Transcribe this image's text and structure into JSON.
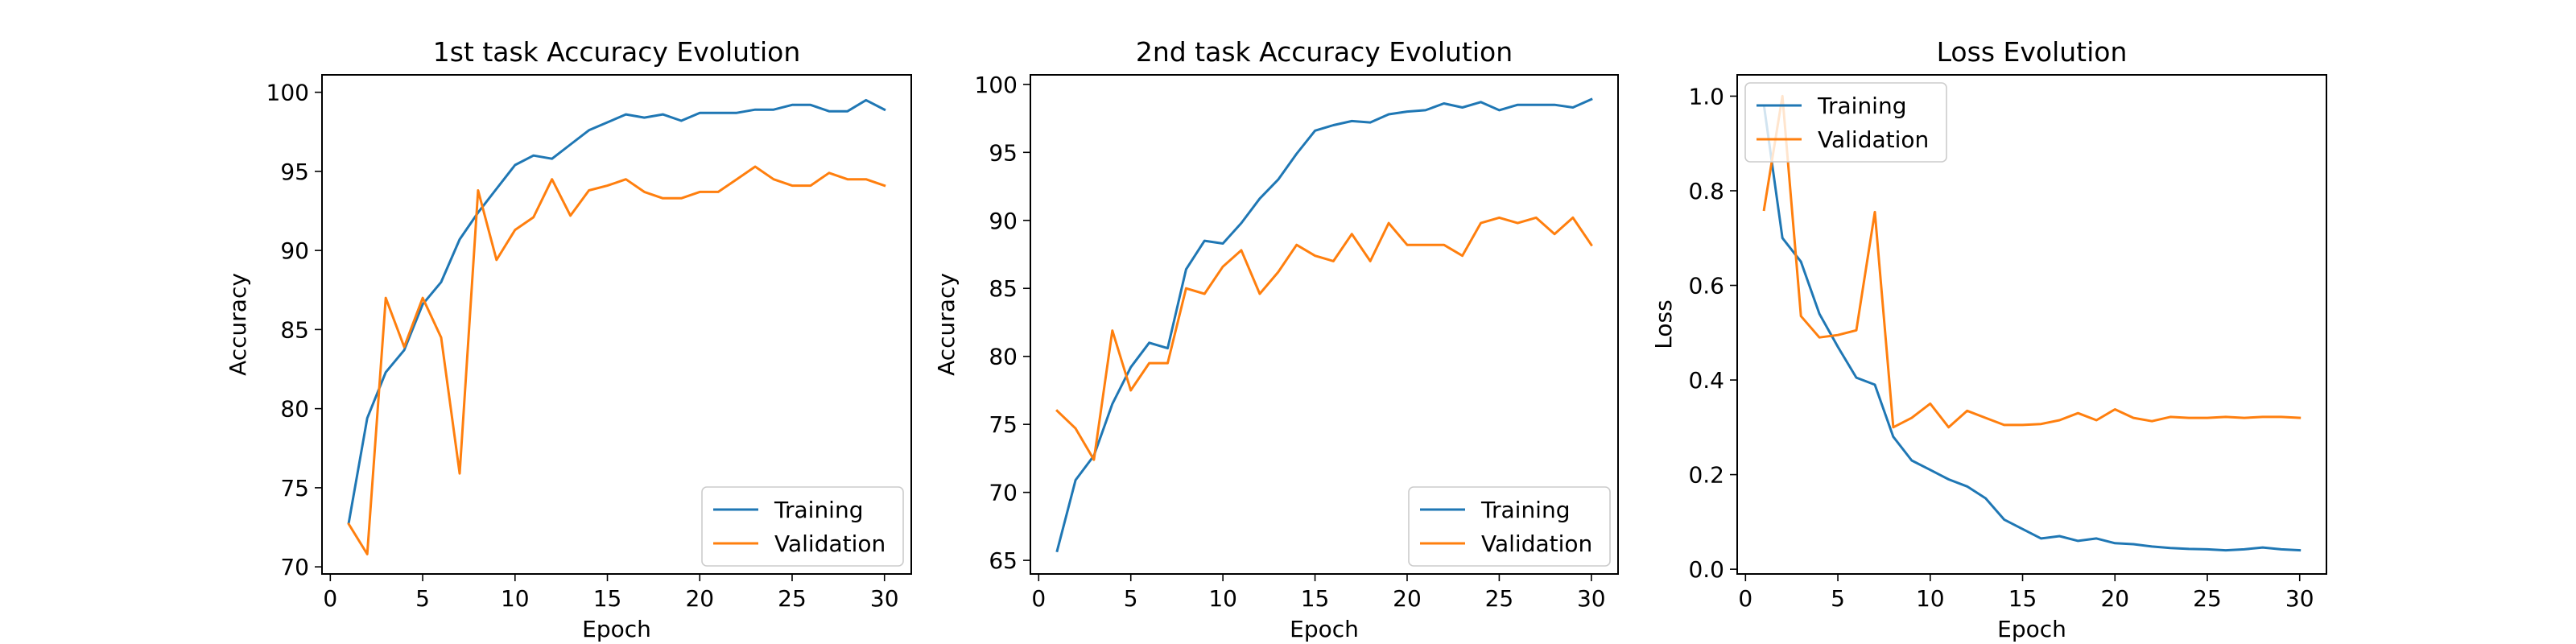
{
  "colors": {
    "training": "#1f77b4",
    "validation": "#ff7f0e"
  },
  "chart_data": [
    {
      "type": "line",
      "title": "1st task Accuracy Evolution",
      "xlabel": "Epoch",
      "ylabel": "Accuracy",
      "xlim": [
        -0.45,
        31.45
      ],
      "ylim": [
        69.55,
        101.1
      ],
      "xticks": [
        0,
        5,
        10,
        15,
        20,
        25,
        30
      ],
      "yticks": [
        70,
        75,
        80,
        85,
        90,
        95,
        100
      ],
      "legend": "lower right",
      "grid": false,
      "x": [
        1,
        2,
        3,
        4,
        5,
        6,
        7,
        8,
        9,
        10,
        11,
        12,
        13,
        14,
        15,
        16,
        17,
        18,
        19,
        20,
        21,
        22,
        23,
        24,
        25,
        26,
        27,
        28,
        29,
        30
      ],
      "series": [
        {
          "name": "Training",
          "values": [
            72.8,
            79.4,
            82.3,
            83.7,
            86.6,
            88.0,
            90.7,
            92.4,
            93.9,
            95.4,
            96.0,
            95.8,
            96.7,
            97.6,
            98.1,
            98.6,
            98.4,
            98.6,
            98.2,
            98.7,
            98.7,
            98.7,
            98.9,
            98.9,
            99.2,
            99.2,
            98.8,
            98.8,
            99.5,
            98.9
          ]
        },
        {
          "name": "Validation",
          "values": [
            72.7,
            70.8,
            87.0,
            83.9,
            87.0,
            84.5,
            75.9,
            93.8,
            89.4,
            91.3,
            92.1,
            94.5,
            92.2,
            93.8,
            94.1,
            94.5,
            93.7,
            93.3,
            93.3,
            93.7,
            93.7,
            94.5,
            95.3,
            94.5,
            94.1,
            94.1,
            94.9,
            94.5,
            94.5,
            94.1
          ]
        }
      ]
    },
    {
      "type": "line",
      "title": "2nd task Accuracy Evolution",
      "xlabel": "Epoch",
      "ylabel": "Accuracy",
      "xlim": [
        -0.45,
        31.45
      ],
      "ylim": [
        64.0,
        100.7
      ],
      "xticks": [
        0,
        5,
        10,
        15,
        20,
        25,
        30
      ],
      "yticks": [
        65,
        70,
        75,
        80,
        85,
        90,
        95,
        100
      ],
      "legend": "lower right",
      "grid": false,
      "x": [
        1,
        2,
        3,
        4,
        5,
        6,
        7,
        8,
        9,
        10,
        11,
        12,
        13,
        14,
        15,
        16,
        17,
        18,
        19,
        20,
        21,
        22,
        23,
        24,
        25,
        26,
        27,
        28,
        29,
        30
      ],
      "series": [
        {
          "name": "Training",
          "values": [
            65.7,
            70.9,
            72.7,
            76.5,
            79.2,
            81.0,
            80.6,
            86.4,
            88.5,
            88.3,
            89.8,
            91.6,
            93.0,
            94.9,
            96.6,
            97.0,
            97.3,
            97.2,
            97.8,
            98.0,
            98.1,
            98.6,
            98.3,
            98.7,
            98.1,
            98.5,
            98.5,
            98.5,
            98.3,
            98.9
          ]
        },
        {
          "name": "Validation",
          "values": [
            76.0,
            74.7,
            72.4,
            81.9,
            77.5,
            79.5,
            79.5,
            85.0,
            84.6,
            86.6,
            87.8,
            84.6,
            86.2,
            88.2,
            87.4,
            87.0,
            89.0,
            87.0,
            89.8,
            88.2,
            88.2,
            88.2,
            87.4,
            89.8,
            90.2,
            89.8,
            90.2,
            89.0,
            90.2,
            88.2
          ]
        }
      ]
    },
    {
      "type": "line",
      "title": "Loss Evolution",
      "xlabel": "Epoch",
      "ylabel": "Loss",
      "xlim": [
        -0.45,
        31.45
      ],
      "ylim": [
        -0.01,
        1.045
      ],
      "xticks": [
        0,
        5,
        10,
        15,
        20,
        25,
        30
      ],
      "yticks": [
        0.0,
        0.2,
        0.4,
        0.6,
        0.8,
        1.0
      ],
      "ytick_labels": [
        "0.0",
        "0.2",
        "0.4",
        "0.6",
        "0.8",
        "1.0"
      ],
      "legend": "upper left",
      "grid": false,
      "x": [
        1,
        2,
        3,
        4,
        5,
        6,
        7,
        8,
        9,
        10,
        11,
        12,
        13,
        14,
        15,
        16,
        17,
        18,
        19,
        20,
        21,
        22,
        23,
        24,
        25,
        26,
        27,
        28,
        29,
        30
      ],
      "series": [
        {
          "name": "Training",
          "values": [
            0.98,
            0.7,
            0.65,
            0.54,
            0.47,
            0.405,
            0.39,
            0.28,
            0.23,
            0.21,
            0.19,
            0.175,
            0.15,
            0.105,
            0.085,
            0.065,
            0.07,
            0.06,
            0.065,
            0.055,
            0.053,
            0.048,
            0.045,
            0.043,
            0.042,
            0.04,
            0.042,
            0.046,
            0.042,
            0.04
          ]
        },
        {
          "name": "Validation",
          "values": [
            0.76,
            1.0,
            0.535,
            0.49,
            0.495,
            0.505,
            0.755,
            0.3,
            0.32,
            0.35,
            0.3,
            0.335,
            0.32,
            0.305,
            0.305,
            0.307,
            0.315,
            0.33,
            0.315,
            0.338,
            0.32,
            0.313,
            0.322,
            0.32,
            0.32,
            0.322,
            0.32,
            0.322,
            0.322,
            0.32
          ]
        }
      ]
    }
  ]
}
